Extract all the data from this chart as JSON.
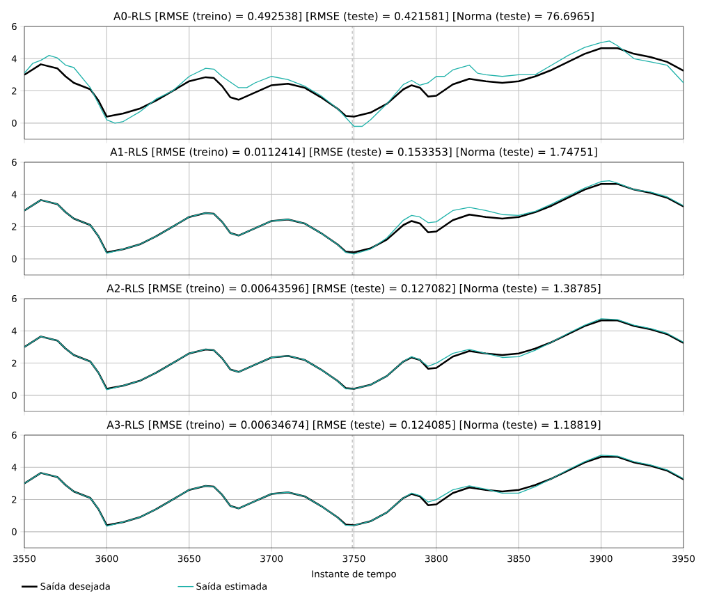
{
  "chart_data": [
    {
      "type": "line",
      "title": "A0-RLS [RMSE (treino) = 0.492538] [RMSE (teste) = 0.421581] [Norma (teste) = 76.6965]",
      "xlim": [
        3550,
        3950
      ],
      "ylim": [
        -1,
        6
      ],
      "xticks": [
        3550,
        3600,
        3650,
        3700,
        3750,
        3800,
        3850,
        3900,
        3950
      ],
      "yticks": [
        0,
        2,
        4,
        6
      ],
      "grid": true,
      "tick_labels": "y",
      "ref_lines": [
        {
          "axis": "x",
          "value": 3749,
          "color": "#555555",
          "line_style": "dashed"
        }
      ],
      "series": [
        {
          "color": "#000000",
          "x": [
            3550,
            3560,
            3570,
            3575,
            3580,
            3590,
            3595,
            3600,
            3610,
            3620,
            3630,
            3640,
            3650,
            3660,
            3665,
            3670,
            3675,
            3680,
            3690,
            3700,
            3710,
            3720,
            3730,
            3740,
            3745,
            3750,
            3760,
            3770,
            3780,
            3785,
            3790,
            3795,
            3800,
            3810,
            3820,
            3830,
            3840,
            3850,
            3860,
            3870,
            3880,
            3890,
            3900,
            3910,
            3920,
            3930,
            3940,
            3950
          ],
          "values": [
            3.0,
            3.65,
            3.4,
            2.9,
            2.5,
            2.1,
            1.4,
            0.4,
            0.6,
            0.9,
            1.4,
            2.0,
            2.6,
            2.85,
            2.8,
            2.3,
            1.6,
            1.45,
            1.9,
            2.35,
            2.45,
            2.2,
            1.6,
            0.9,
            0.45,
            0.4,
            0.65,
            1.2,
            2.1,
            2.35,
            2.2,
            1.65,
            1.7,
            2.4,
            2.75,
            2.6,
            2.5,
            2.6,
            2.9,
            3.3,
            3.8,
            4.3,
            4.65,
            4.65,
            4.3,
            4.1,
            3.8,
            3.25
          ]
        },
        {
          "color": "#20b2aa",
          "x": [
            3550,
            3555,
            3560,
            3565,
            3570,
            3575,
            3580,
            3590,
            3600,
            3605,
            3610,
            3620,
            3630,
            3640,
            3650,
            3660,
            3665,
            3670,
            3680,
            3685,
            3690,
            3700,
            3710,
            3720,
            3730,
            3740,
            3750,
            3755,
            3760,
            3770,
            3780,
            3785,
            3790,
            3795,
            3800,
            3805,
            3810,
            3820,
            3825,
            3830,
            3840,
            3850,
            3860,
            3870,
            3880,
            3890,
            3900,
            3905,
            3910,
            3920,
            3930,
            3940,
            3950
          ],
          "values": [
            3.1,
            3.7,
            3.9,
            4.2,
            4.05,
            3.6,
            3.45,
            2.2,
            0.2,
            0.0,
            0.1,
            0.7,
            1.5,
            2.0,
            2.9,
            3.4,
            3.35,
            2.9,
            2.2,
            2.2,
            2.5,
            2.9,
            2.7,
            2.3,
            1.7,
            0.9,
            -0.2,
            -0.2,
            0.2,
            1.2,
            2.4,
            2.65,
            2.35,
            2.5,
            2.9,
            2.9,
            3.3,
            3.6,
            3.1,
            3.0,
            2.9,
            3.0,
            3.0,
            3.6,
            4.2,
            4.7,
            5.0,
            5.1,
            4.8,
            4.0,
            3.8,
            3.6,
            2.5
          ]
        }
      ]
    },
    {
      "type": "line",
      "title": "A1-RLS [RMSE (treino) = 0.0112414] [RMSE (teste) = 0.153353] [Norma (teste) = 1.74751]",
      "xlim": [
        3550,
        3950
      ],
      "ylim": [
        -1,
        6
      ],
      "xticks": [
        3550,
        3600,
        3650,
        3700,
        3750,
        3800,
        3850,
        3900,
        3950
      ],
      "yticks": [
        0,
        2,
        4,
        6
      ],
      "grid": true,
      "tick_labels": "y",
      "ref_lines": [
        {
          "axis": "x",
          "value": 3749,
          "color": "#555555",
          "line_style": "dashed"
        }
      ],
      "series": [
        {
          "color": "#000000",
          "x": [
            3550,
            3560,
            3570,
            3575,
            3580,
            3590,
            3595,
            3600,
            3610,
            3620,
            3630,
            3640,
            3650,
            3660,
            3665,
            3670,
            3675,
            3680,
            3690,
            3700,
            3710,
            3720,
            3730,
            3740,
            3745,
            3750,
            3760,
            3770,
            3780,
            3785,
            3790,
            3795,
            3800,
            3810,
            3820,
            3830,
            3840,
            3850,
            3860,
            3870,
            3880,
            3890,
            3900,
            3910,
            3920,
            3930,
            3940,
            3950
          ],
          "values": [
            3.0,
            3.65,
            3.4,
            2.9,
            2.5,
            2.1,
            1.4,
            0.4,
            0.6,
            0.9,
            1.4,
            2.0,
            2.6,
            2.85,
            2.8,
            2.3,
            1.6,
            1.45,
            1.9,
            2.35,
            2.45,
            2.2,
            1.6,
            0.9,
            0.45,
            0.4,
            0.65,
            1.2,
            2.1,
            2.35,
            2.2,
            1.65,
            1.7,
            2.4,
            2.75,
            2.6,
            2.5,
            2.6,
            2.9,
            3.3,
            3.8,
            4.3,
            4.65,
            4.65,
            4.3,
            4.1,
            3.8,
            3.25
          ]
        },
        {
          "color": "#20b2aa",
          "x": [
            3550,
            3560,
            3570,
            3575,
            3580,
            3590,
            3595,
            3600,
            3610,
            3620,
            3630,
            3640,
            3650,
            3660,
            3665,
            3670,
            3675,
            3680,
            3690,
            3700,
            3710,
            3720,
            3730,
            3740,
            3745,
            3750,
            3760,
            3770,
            3780,
            3785,
            3790,
            3795,
            3800,
            3810,
            3820,
            3830,
            3840,
            3850,
            3860,
            3870,
            3880,
            3890,
            3900,
            3905,
            3910,
            3920,
            3930,
            3940,
            3950
          ],
          "values": [
            3.0,
            3.65,
            3.4,
            2.9,
            2.5,
            2.1,
            1.4,
            0.35,
            0.6,
            0.9,
            1.4,
            2.0,
            2.6,
            2.85,
            2.8,
            2.3,
            1.6,
            1.45,
            1.9,
            2.35,
            2.45,
            2.2,
            1.6,
            0.9,
            0.4,
            0.3,
            0.6,
            1.3,
            2.4,
            2.7,
            2.6,
            2.25,
            2.3,
            3.0,
            3.2,
            3.0,
            2.75,
            2.7,
            2.95,
            3.4,
            3.9,
            4.4,
            4.8,
            4.85,
            4.7,
            4.3,
            4.15,
            3.85,
            3.3
          ]
        }
      ]
    },
    {
      "type": "line",
      "title": "A2-RLS [RMSE (treino) = 0.00643596] [RMSE (teste) = 0.127082] [Norma (teste) = 1.38785]",
      "xlim": [
        3550,
        3950
      ],
      "ylim": [
        -1,
        6
      ],
      "xticks": [
        3550,
        3600,
        3650,
        3700,
        3750,
        3800,
        3850,
        3900,
        3950
      ],
      "yticks": [
        0,
        2,
        4,
        6
      ],
      "grid": true,
      "tick_labels": "y",
      "ref_lines": [
        {
          "axis": "x",
          "value": 3749,
          "color": "#555555",
          "line_style": "dashed"
        }
      ],
      "series": [
        {
          "color": "#000000",
          "x": [
            3550,
            3560,
            3570,
            3575,
            3580,
            3590,
            3595,
            3600,
            3610,
            3620,
            3630,
            3640,
            3650,
            3660,
            3665,
            3670,
            3675,
            3680,
            3690,
            3700,
            3710,
            3720,
            3730,
            3740,
            3745,
            3750,
            3760,
            3770,
            3780,
            3785,
            3790,
            3795,
            3800,
            3810,
            3820,
            3830,
            3840,
            3850,
            3860,
            3870,
            3880,
            3890,
            3900,
            3910,
            3920,
            3930,
            3940,
            3950
          ],
          "values": [
            3.0,
            3.65,
            3.4,
            2.9,
            2.5,
            2.1,
            1.4,
            0.4,
            0.6,
            0.9,
            1.4,
            2.0,
            2.6,
            2.85,
            2.8,
            2.3,
            1.6,
            1.45,
            1.9,
            2.35,
            2.45,
            2.2,
            1.6,
            0.9,
            0.45,
            0.4,
            0.65,
            1.2,
            2.1,
            2.35,
            2.2,
            1.65,
            1.7,
            2.4,
            2.75,
            2.6,
            2.5,
            2.6,
            2.9,
            3.3,
            3.8,
            4.3,
            4.65,
            4.65,
            4.3,
            4.1,
            3.8,
            3.25
          ]
        },
        {
          "color": "#20b2aa",
          "x": [
            3550,
            3560,
            3570,
            3575,
            3580,
            3590,
            3595,
            3600,
            3610,
            3620,
            3630,
            3640,
            3650,
            3660,
            3665,
            3670,
            3675,
            3680,
            3690,
            3700,
            3710,
            3720,
            3730,
            3740,
            3745,
            3750,
            3760,
            3770,
            3780,
            3785,
            3790,
            3795,
            3800,
            3810,
            3820,
            3830,
            3840,
            3850,
            3860,
            3870,
            3880,
            3890,
            3900,
            3910,
            3920,
            3930,
            3940,
            3950
          ],
          "values": [
            3.0,
            3.65,
            3.4,
            2.9,
            2.5,
            2.1,
            1.4,
            0.35,
            0.6,
            0.9,
            1.4,
            2.0,
            2.6,
            2.85,
            2.8,
            2.3,
            1.6,
            1.45,
            1.9,
            2.35,
            2.45,
            2.2,
            1.6,
            0.9,
            0.4,
            0.4,
            0.65,
            1.2,
            2.1,
            2.4,
            2.2,
            1.8,
            2.0,
            2.6,
            2.85,
            2.6,
            2.35,
            2.4,
            2.8,
            3.3,
            3.85,
            4.35,
            4.75,
            4.7,
            4.35,
            4.15,
            3.85,
            3.3
          ]
        }
      ]
    },
    {
      "type": "line",
      "title": "A3-RLS [RMSE (treino) = 0.00634674] [RMSE (teste) = 0.124085] [Norma (teste) = 1.18819]",
      "xlabel": "Instante de tempo",
      "xlim": [
        3550,
        3950
      ],
      "ylim": [
        -1,
        6
      ],
      "xticks": [
        3550,
        3600,
        3650,
        3700,
        3750,
        3800,
        3850,
        3900,
        3950
      ],
      "yticks": [
        0,
        2,
        4,
        6
      ],
      "grid": true,
      "legend": "bottom",
      "ref_lines": [
        {
          "axis": "x",
          "value": 3749,
          "color": "#555555",
          "line_style": "dashed"
        }
      ],
      "series": [
        {
          "name": "Saída desejada",
          "color": "#000000",
          "x": [
            3550,
            3560,
            3570,
            3575,
            3580,
            3590,
            3595,
            3600,
            3610,
            3620,
            3630,
            3640,
            3650,
            3660,
            3665,
            3670,
            3675,
            3680,
            3690,
            3700,
            3710,
            3720,
            3730,
            3740,
            3745,
            3750,
            3760,
            3770,
            3780,
            3785,
            3790,
            3795,
            3800,
            3810,
            3820,
            3830,
            3840,
            3850,
            3860,
            3870,
            3880,
            3890,
            3900,
            3910,
            3920,
            3930,
            3940,
            3950
          ],
          "values": [
            3.0,
            3.65,
            3.4,
            2.9,
            2.5,
            2.1,
            1.4,
            0.4,
            0.6,
            0.9,
            1.4,
            2.0,
            2.6,
            2.85,
            2.8,
            2.3,
            1.6,
            1.45,
            1.9,
            2.35,
            2.45,
            2.2,
            1.6,
            0.9,
            0.45,
            0.4,
            0.65,
            1.2,
            2.1,
            2.35,
            2.2,
            1.65,
            1.7,
            2.4,
            2.75,
            2.6,
            2.5,
            2.6,
            2.9,
            3.3,
            3.8,
            4.3,
            4.65,
            4.65,
            4.3,
            4.1,
            3.8,
            3.25
          ]
        },
        {
          "name": "Saída estimada",
          "color": "#20b2aa",
          "x": [
            3550,
            3560,
            3570,
            3575,
            3580,
            3590,
            3595,
            3600,
            3610,
            3620,
            3630,
            3640,
            3650,
            3660,
            3665,
            3670,
            3675,
            3680,
            3690,
            3700,
            3710,
            3720,
            3730,
            3740,
            3745,
            3750,
            3760,
            3770,
            3780,
            3785,
            3790,
            3795,
            3800,
            3810,
            3820,
            3830,
            3840,
            3850,
            3860,
            3870,
            3880,
            3890,
            3900,
            3910,
            3920,
            3930,
            3940,
            3950
          ],
          "values": [
            3.0,
            3.65,
            3.4,
            2.9,
            2.5,
            2.1,
            1.4,
            0.35,
            0.6,
            0.9,
            1.4,
            2.0,
            2.6,
            2.85,
            2.8,
            2.3,
            1.6,
            1.45,
            1.9,
            2.35,
            2.45,
            2.2,
            1.6,
            0.9,
            0.4,
            0.4,
            0.65,
            1.2,
            2.1,
            2.4,
            2.25,
            1.85,
            2.0,
            2.6,
            2.85,
            2.65,
            2.4,
            2.4,
            2.8,
            3.3,
            3.85,
            4.35,
            4.75,
            4.7,
            4.35,
            4.15,
            3.85,
            3.3
          ]
        }
      ]
    }
  ]
}
